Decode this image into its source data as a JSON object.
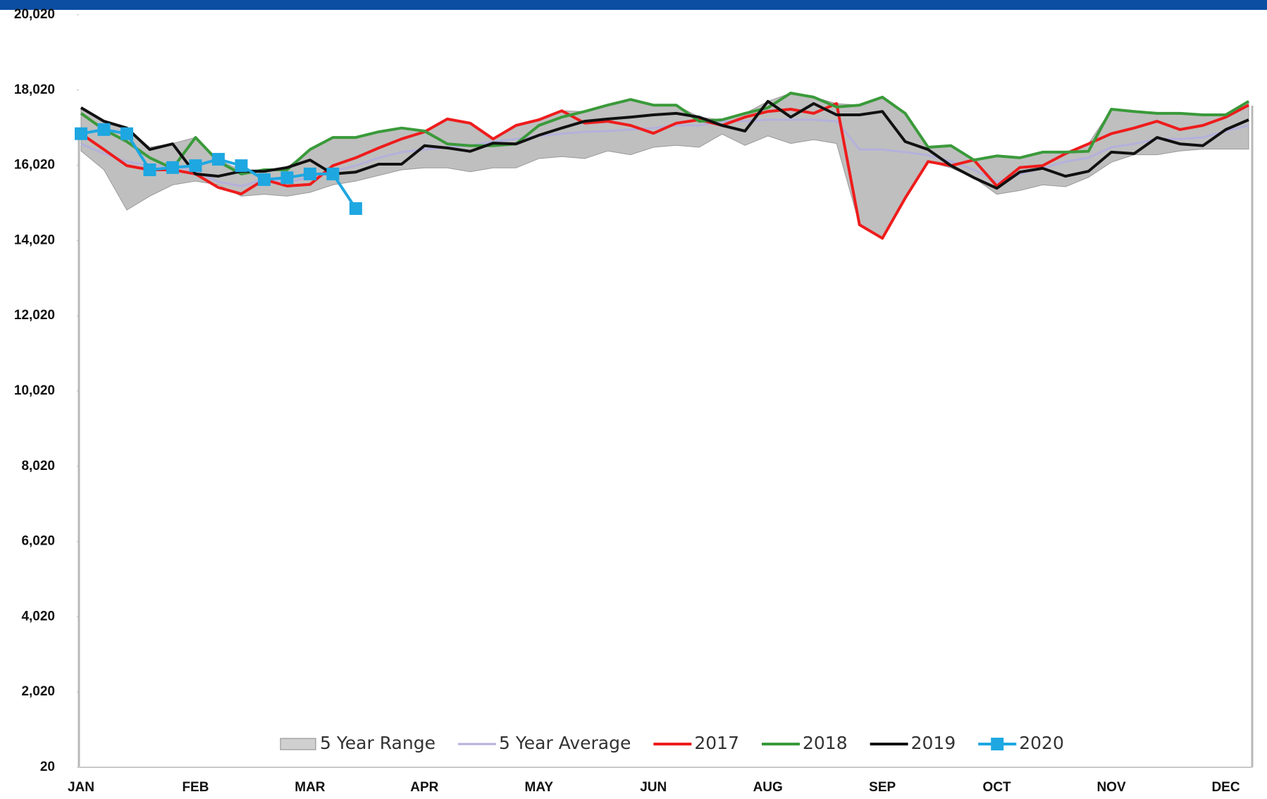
{
  "chart_data": {
    "type": "line",
    "categories": [
      "JAN",
      null,
      null,
      null,
      null,
      "FEB",
      null,
      null,
      null,
      null,
      "MAR",
      null,
      null,
      null,
      null,
      "APR",
      null,
      null,
      null,
      null,
      "MAY",
      null,
      null,
      null,
      null,
      "JUN",
      null,
      null,
      null,
      null,
      "AUG",
      null,
      null,
      null,
      null,
      "SEP",
      null,
      null,
      null,
      null,
      "OCT",
      null,
      null,
      null,
      null,
      "NOV",
      null,
      null,
      null,
      null,
      "DEC",
      null
    ],
    "ylim": [
      20,
      20020
    ],
    "yticks": [
      {
        "value": 20,
        "label": "20"
      },
      {
        "value": 2020,
        "label": "2,020"
      },
      {
        "value": 4020,
        "label": "4,020"
      },
      {
        "value": 6020,
        "label": "6,020"
      },
      {
        "value": 8020,
        "label": "8,020"
      },
      {
        "value": 10020,
        "label": "10,020"
      },
      {
        "value": 12020,
        "label": "12,020"
      },
      {
        "value": 14020,
        "label": "14,020"
      },
      {
        "value": 16020,
        "label": "16,020"
      },
      {
        "value": 18020,
        "label": "18,020"
      },
      {
        "value": 20020,
        "label": "20,020"
      }
    ],
    "range": {
      "name": "5 Year Range",
      "color": "#a9a9a9",
      "low": [
        16400,
        15900,
        14830,
        15200,
        15500,
        15600,
        15500,
        15200,
        15250,
        15200,
        15300,
        15500,
        15600,
        15750,
        15900,
        15950,
        15950,
        15850,
        15950,
        15950,
        16200,
        16250,
        16200,
        16400,
        16300,
        16500,
        16550,
        16500,
        16850,
        16550,
        16800,
        16600,
        16700,
        16600,
        14440,
        14080,
        15150,
        16120,
        15950,
        15690,
        15250,
        15350,
        15500,
        15450,
        15700,
        16100,
        16300,
        16300,
        16400,
        16450,
        16450,
        16450
      ],
      "high": [
        17550,
        17190,
        17010,
        16500,
        16600,
        16760,
        16150,
        15900,
        15900,
        15960,
        16440,
        16760,
        16760,
        16910,
        17010,
        16930,
        17250,
        17140,
        16720,
        17080,
        17230,
        17470,
        17450,
        17620,
        17770,
        17620,
        17620,
        17300,
        17230,
        17400,
        17720,
        17940,
        17830,
        17660,
        17620,
        17830,
        17400,
        16500,
        16540,
        16160,
        16270,
        16220,
        16370,
        16330,
        16590,
        17510,
        17450,
        17400,
        17400,
        17360,
        17360,
        17720
      ]
    },
    "series": [
      {
        "name": "5 Year Average",
        "color": "#b4b0dc",
        "values": [
          16590,
          16330,
          16120,
          16010,
          16010,
          15860,
          15580,
          15470,
          15640,
          15580,
          15690,
          15860,
          16010,
          16220,
          16370,
          16440,
          16500,
          16540,
          16650,
          16720,
          16800,
          16860,
          16910,
          16930,
          16970,
          17010,
          17080,
          17080,
          17190,
          17190,
          17230,
          17230,
          17230,
          17190,
          16440,
          16440,
          16370,
          16290,
          16120,
          15900,
          15580,
          15790,
          15940,
          16120,
          16220,
          16500,
          16590,
          16720,
          16720,
          16760,
          16930,
          17080
        ]
      },
      {
        "name": "2017",
        "color": "#ee1c1c",
        "values": [
          16860,
          16440,
          16010,
          15900,
          15900,
          15790,
          15430,
          15260,
          15640,
          15470,
          15510,
          16010,
          16220,
          16480,
          16720,
          16910,
          17250,
          17140,
          16720,
          17080,
          17230,
          17470,
          17140,
          17190,
          17080,
          16870,
          17140,
          17230,
          17080,
          17300,
          17450,
          17510,
          17400,
          17660,
          14440,
          14080,
          15150,
          16120,
          16010,
          16160,
          15470,
          15960,
          16010,
          16330,
          16590,
          16860,
          17010,
          17190,
          16970,
          17080,
          17300,
          17620
        ]
      },
      {
        "name": "2018",
        "color": "#3a9a3a",
        "values": [
          17400,
          16970,
          16650,
          16220,
          15940,
          16760,
          16120,
          15790,
          15900,
          15900,
          16440,
          16760,
          16760,
          16910,
          17010,
          16930,
          16590,
          16540,
          16540,
          16590,
          17080,
          17300,
          17450,
          17620,
          17770,
          17620,
          17620,
          17190,
          17230,
          17400,
          17550,
          17940,
          17830,
          17570,
          17620,
          17830,
          17400,
          16500,
          16540,
          16160,
          16270,
          16220,
          16370,
          16370,
          16390,
          17510,
          17450,
          17400,
          17400,
          17360,
          17360,
          17720
        ]
      },
      {
        "name": "2019",
        "color": "#111111",
        "values": [
          17550,
          17190,
          17010,
          16440,
          16590,
          15790,
          15730,
          15860,
          15860,
          15960,
          16160,
          15790,
          15840,
          16050,
          16050,
          16540,
          16480,
          16390,
          16610,
          16590,
          16820,
          17010,
          17190,
          17250,
          17300,
          17360,
          17400,
          17300,
          17080,
          16930,
          17720,
          17300,
          17660,
          17360,
          17360,
          17450,
          16650,
          16440,
          16010,
          15690,
          15410,
          15840,
          15940,
          15730,
          15860,
          16370,
          16330,
          16760,
          16590,
          16540,
          16970,
          17230
        ]
      },
      {
        "name": "2020",
        "color": "#1ea7e1",
        "marker": "square",
        "values": [
          16860,
          16970,
          16860,
          15900,
          15960,
          16010,
          16180,
          16010,
          15640,
          15690,
          15790,
          15790,
          14870,
          null,
          null,
          null,
          null,
          null,
          null,
          null,
          null,
          null,
          null,
          null,
          null,
          null,
          null,
          null,
          null,
          null,
          null,
          null,
          null,
          null,
          null,
          null,
          null,
          null,
          null,
          null,
          null,
          null,
          null,
          null,
          null,
          null,
          null,
          null,
          null,
          null,
          null,
          null
        ]
      }
    ]
  }
}
